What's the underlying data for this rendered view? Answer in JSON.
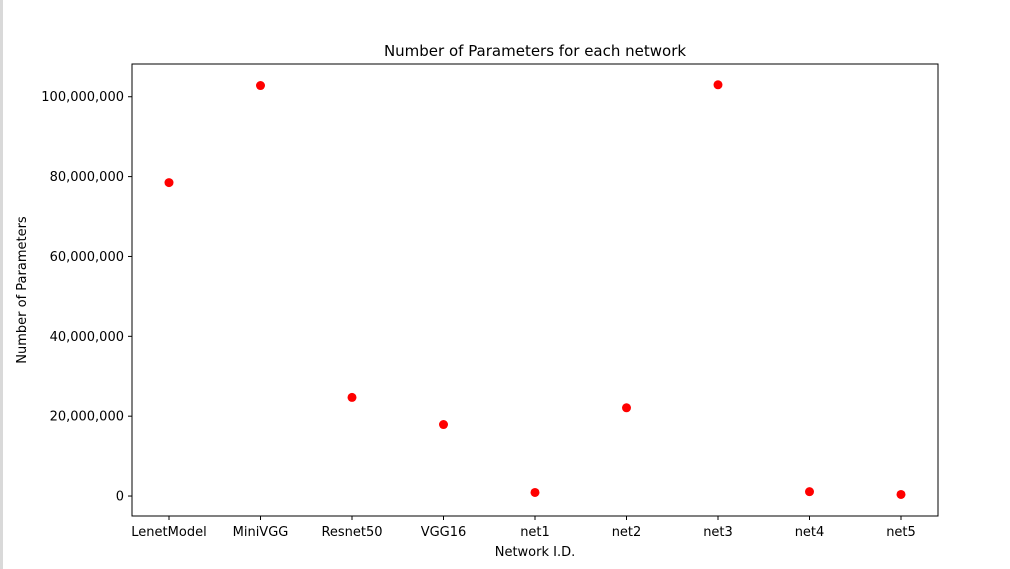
{
  "chart_data": {
    "type": "scatter",
    "title": "Number of Parameters for each network",
    "xlabel": "Network I.D.",
    "ylabel": "Number of Parameters",
    "categories": [
      "LenetModel",
      "MiniVGG",
      "Resnet50",
      "VGG16",
      "net1",
      "net2",
      "net3",
      "net4",
      "net5"
    ],
    "values": [
      78500000,
      102800000,
      24700000,
      17900000,
      900000,
      22100000,
      103000000,
      1100000,
      400000
    ],
    "yticks": [
      0,
      20000000,
      40000000,
      60000000,
      80000000,
      100000000
    ],
    "ytick_labels": [
      "0",
      "20,000,000",
      "40,000,000",
      "60,000,000",
      "80,000,000",
      "100,000,000"
    ],
    "ylim": [
      -5000000,
      108200000
    ],
    "grid": false,
    "marker_color": "#ff0000"
  }
}
